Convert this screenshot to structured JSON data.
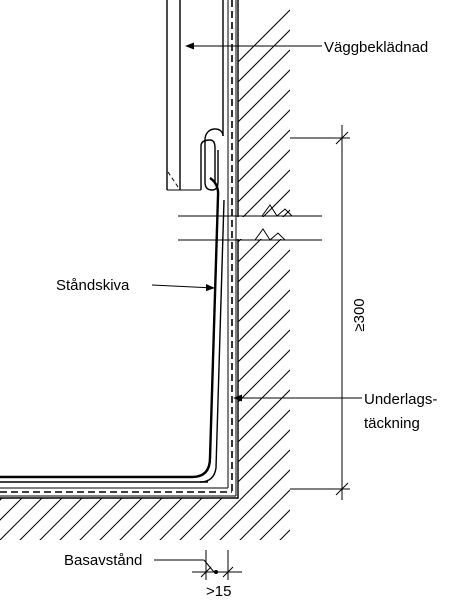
{
  "labels": {
    "wall_cladding": "Väggbeklädnad",
    "upstand_board": "Ståndskiva",
    "height_dim": "≥300",
    "underlay_line1": "Underlags-",
    "underlay_line2": "täckning",
    "base_distance": "Basavstånd",
    "base_dim": ">15"
  }
}
